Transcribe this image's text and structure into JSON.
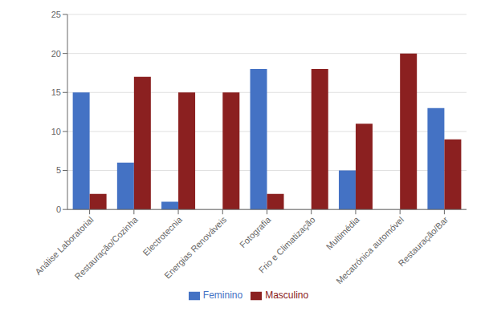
{
  "chart_data": {
    "type": "bar",
    "categories": [
      "Análise Laboratorial",
      "Restauração/Cozinha",
      "Electrotecnia",
      "Energias Renováveis",
      "Fotografia",
      "Frio e Climatização",
      "Multimédia",
      "Mecatrónica automóvel",
      "Restauração/Bar"
    ],
    "series": [
      {
        "name": "Feminino",
        "color": "#4472C4",
        "values": [
          15,
          6,
          1,
          0,
          18,
          0,
          5,
          0,
          13
        ]
      },
      {
        "name": "Masculino",
        "color": "#8B2020",
        "values": [
          2,
          17,
          15,
          15,
          2,
          18,
          11,
          20,
          9
        ]
      }
    ],
    "ylim": [
      0,
      25
    ],
    "yticks": [
      0,
      5,
      10,
      15,
      20,
      25
    ],
    "grid": true,
    "legend": "bottom"
  }
}
